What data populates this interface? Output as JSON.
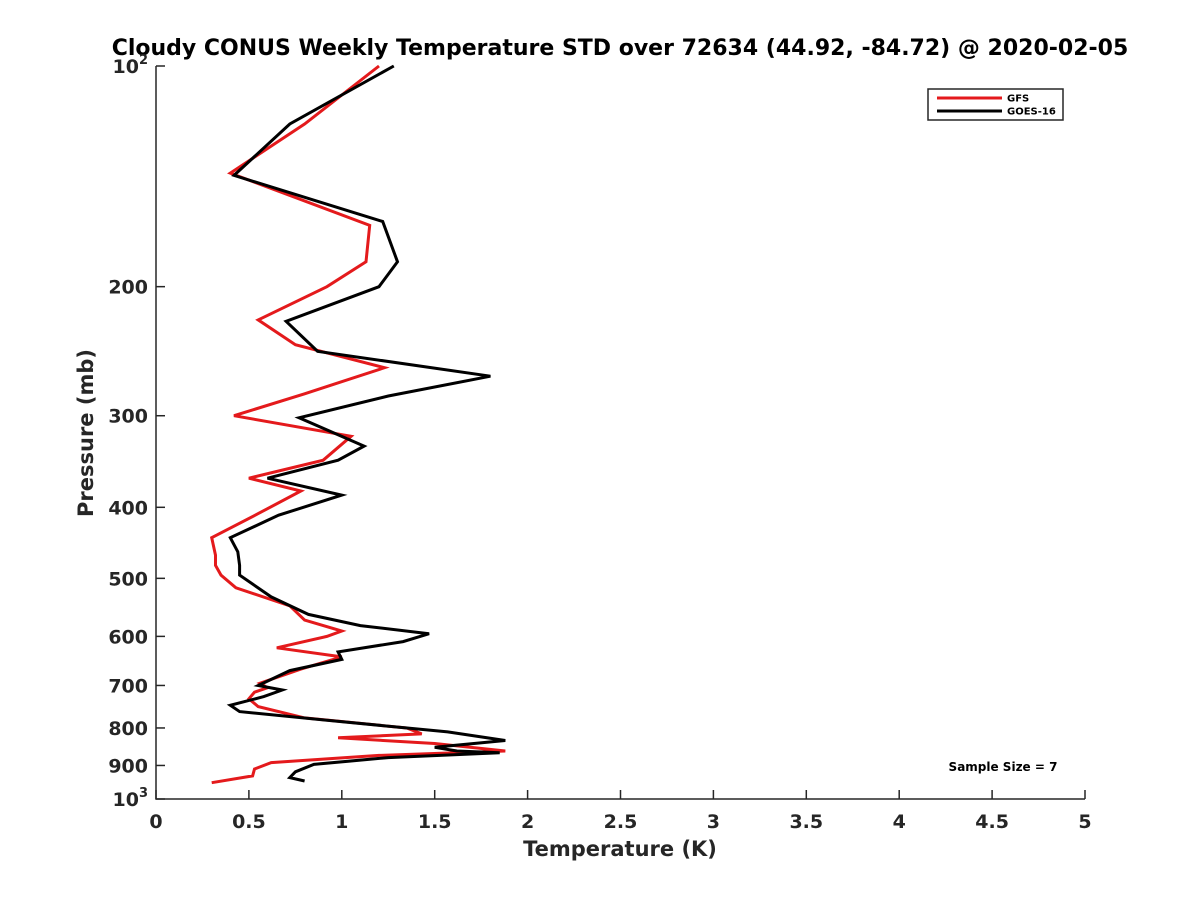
{
  "chart_data": {
    "type": "line",
    "title": "Cloudy CONUS Weekly Temperature STD over 72634 (44.92, -84.72) @ 2020-02-05",
    "xlabel": "Temperature (K)",
    "ylabel": "Pressure (mb)",
    "xlim": [
      0,
      5
    ],
    "ylim": [
      100,
      1000
    ],
    "y_scale": "log",
    "y_reversed": true,
    "x_ticks": [
      "0",
      "0.5",
      "1",
      "1.5",
      "2",
      "2.5",
      "3",
      "3.5",
      "4",
      "4.5",
      "5"
    ],
    "x_tick_values": [
      0,
      0.5,
      1,
      1.5,
      2,
      2.5,
      3,
      3.5,
      4,
      4.5,
      5
    ],
    "y_ticks": [
      {
        "value": 100,
        "base": "10",
        "exp": "2"
      },
      {
        "value": 200,
        "label": "200"
      },
      {
        "value": 300,
        "label": "300"
      },
      {
        "value": 400,
        "label": "400"
      },
      {
        "value": 500,
        "label": "500"
      },
      {
        "value": 600,
        "label": "600"
      },
      {
        "value": 700,
        "label": "700"
      },
      {
        "value": 800,
        "label": "800"
      },
      {
        "value": 900,
        "label": "900"
      },
      {
        "value": 1000,
        "base": "10",
        "exp": "3"
      }
    ],
    "grid": false,
    "legend_position": "top-right",
    "series": [
      {
        "name": "GFS",
        "color": "#e41a1c",
        "points": [
          [
            1.2,
            100
          ],
          [
            0.8,
            120
          ],
          [
            0.4,
            140
          ],
          [
            1.15,
            165
          ],
          [
            1.13,
            185
          ],
          [
            0.92,
            200
          ],
          [
            0.55,
            222
          ],
          [
            0.75,
            240
          ],
          [
            1.23,
            258
          ],
          [
            0.8,
            280
          ],
          [
            0.42,
            300
          ],
          [
            1.05,
            320
          ],
          [
            0.9,
            345
          ],
          [
            0.5,
            365
          ],
          [
            0.78,
            380
          ],
          [
            0.55,
            408
          ],
          [
            0.3,
            440
          ],
          [
            0.32,
            465
          ],
          [
            0.32,
            480
          ],
          [
            0.35,
            495
          ],
          [
            0.43,
            515
          ],
          [
            0.72,
            545
          ],
          [
            0.8,
            570
          ],
          [
            1.0,
            590
          ],
          [
            0.92,
            600
          ],
          [
            0.65,
            622
          ],
          [
            1.0,
            640
          ],
          [
            0.78,
            665
          ],
          [
            0.56,
            695
          ],
          [
            0.6,
            705
          ],
          [
            0.53,
            715
          ],
          [
            0.5,
            730
          ],
          [
            0.55,
            748
          ],
          [
            0.8,
            775
          ],
          [
            1.35,
            800
          ],
          [
            1.43,
            815
          ],
          [
            0.98,
            825
          ],
          [
            1.5,
            840
          ],
          [
            1.88,
            860
          ],
          [
            1.2,
            872
          ],
          [
            0.62,
            892
          ],
          [
            0.53,
            910
          ],
          [
            0.52,
            930
          ],
          [
            0.3,
            950
          ]
        ]
      },
      {
        "name": "GOES-16",
        "color": "#000000",
        "points": [
          [
            1.28,
            100
          ],
          [
            0.72,
            120
          ],
          [
            0.42,
            141
          ],
          [
            1.22,
            163
          ],
          [
            1.3,
            185
          ],
          [
            1.2,
            200
          ],
          [
            0.7,
            223
          ],
          [
            0.87,
            245
          ],
          [
            1.8,
            265
          ],
          [
            1.25,
            282
          ],
          [
            0.77,
            302
          ],
          [
            1.12,
            330
          ],
          [
            0.98,
            345
          ],
          [
            0.6,
            365
          ],
          [
            1.0,
            385
          ],
          [
            0.66,
            410
          ],
          [
            0.4,
            440
          ],
          [
            0.44,
            460
          ],
          [
            0.45,
            480
          ],
          [
            0.45,
            495
          ],
          [
            0.62,
            530
          ],
          [
            0.82,
            560
          ],
          [
            1.1,
            580
          ],
          [
            1.47,
            595
          ],
          [
            1.33,
            610
          ],
          [
            0.98,
            630
          ],
          [
            1.0,
            645
          ],
          [
            0.72,
            668
          ],
          [
            0.55,
            700
          ],
          [
            0.68,
            710
          ],
          [
            0.58,
            725
          ],
          [
            0.4,
            745
          ],
          [
            0.45,
            760
          ],
          [
            0.9,
            780
          ],
          [
            1.57,
            810
          ],
          [
            1.88,
            832
          ],
          [
            1.5,
            850
          ],
          [
            1.62,
            860
          ],
          [
            1.85,
            865
          ],
          [
            1.25,
            878
          ],
          [
            0.85,
            897
          ],
          [
            0.75,
            918
          ],
          [
            0.72,
            935
          ],
          [
            0.8,
            945
          ]
        ]
      }
    ],
    "annotation": "Sample Size = 7"
  }
}
